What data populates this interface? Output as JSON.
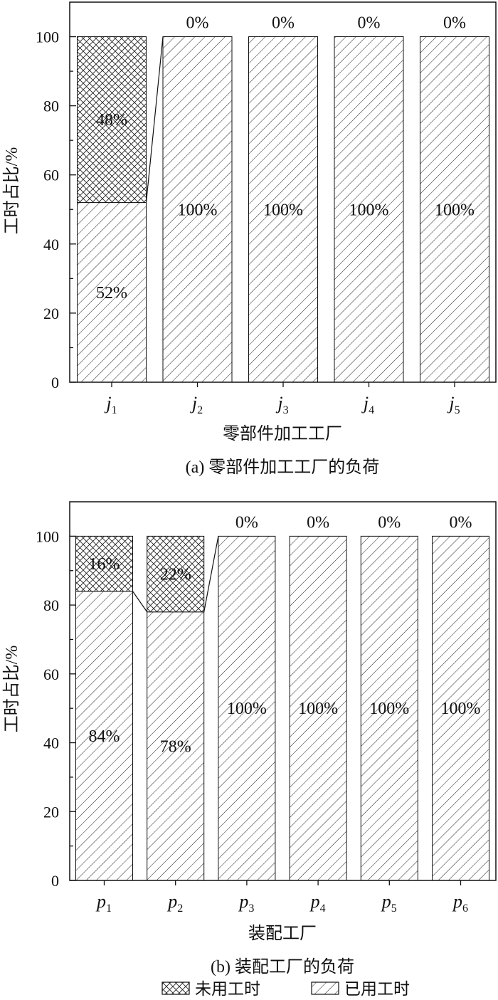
{
  "chart_data": [
    {
      "type": "bar",
      "stacked": true,
      "categories": [
        {
          "base": "j",
          "sub": "1"
        },
        {
          "base": "j",
          "sub": "2"
        },
        {
          "base": "j",
          "sub": "3"
        },
        {
          "base": "j",
          "sub": "4"
        },
        {
          "base": "j",
          "sub": "5"
        }
      ],
      "series": [
        {
          "name": "已用工时",
          "pattern": "diagonal-hatch",
          "values": [
            52,
            100,
            100,
            100,
            100
          ],
          "labels": [
            "52%",
            "100%",
            "100%",
            "100%",
            "100%"
          ]
        },
        {
          "name": "未用工时",
          "pattern": "cross-hatch",
          "values": [
            48,
            0,
            0,
            0,
            0
          ],
          "labels": [
            "48%",
            "0%",
            "0%",
            "0%",
            "0%"
          ]
        }
      ],
      "xlabel": "零部件加工工厂",
      "ylabel": "工时占比/%",
      "ylim": [
        0,
        110
      ],
      "yticks": [
        "0",
        "20",
        "40",
        "60",
        "80",
        "100"
      ],
      "caption": "(a) 零部件加工工厂的负荷",
      "grid": false,
      "connector_lines": true
    },
    {
      "type": "bar",
      "stacked": true,
      "categories": [
        {
          "base": "p",
          "sub": "1"
        },
        {
          "base": "p",
          "sub": "2"
        },
        {
          "base": "p",
          "sub": "3"
        },
        {
          "base": "p",
          "sub": "4"
        },
        {
          "base": "p",
          "sub": "5"
        },
        {
          "base": "p",
          "sub": "6"
        }
      ],
      "series": [
        {
          "name": "已用工时",
          "pattern": "diagonal-hatch",
          "values": [
            84,
            78,
            100,
            100,
            100,
            100
          ],
          "labels": [
            "84%",
            "78%",
            "100%",
            "100%",
            "100%",
            "100%"
          ]
        },
        {
          "name": "未用工时",
          "pattern": "cross-hatch",
          "values": [
            16,
            22,
            0,
            0,
            0,
            0
          ],
          "labels": [
            "16%",
            "22%",
            "0%",
            "0%",
            "0%",
            "0%"
          ]
        }
      ],
      "xlabel": "装配工厂",
      "ylabel": "工时占比/%",
      "ylim": [
        0,
        110
      ],
      "yticks": [
        "0",
        "20",
        "40",
        "60",
        "80",
        "100"
      ],
      "caption": "(b) 装配工厂的负荷",
      "grid": false,
      "connector_lines": true
    }
  ],
  "legend": {
    "placement": "bottom-center",
    "items": [
      {
        "label": "未用工时",
        "pattern": "cross-hatch"
      },
      {
        "label": "已用工时",
        "pattern": "diagonal-hatch"
      }
    ]
  }
}
